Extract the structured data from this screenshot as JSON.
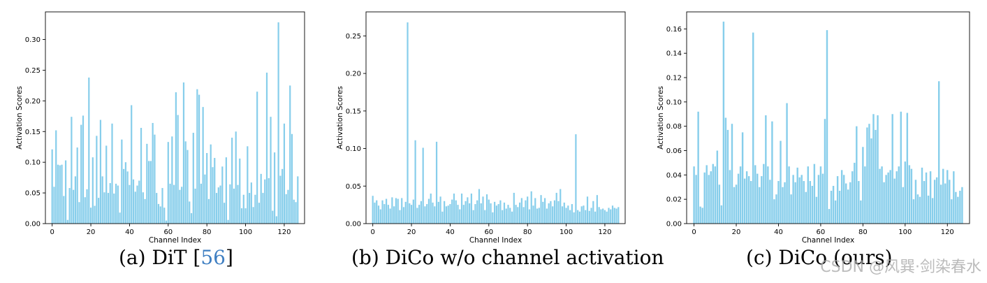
{
  "colors": {
    "bar": "#87ceeb",
    "axis": "#000000",
    "ref": "#3f7fc2"
  },
  "captions": [
    {
      "prefix": "(a) DiT [",
      "ref": "56",
      "suffix": "]"
    },
    {
      "text": "(b) DiCo w/o channel activation"
    },
    {
      "text": "(c) DiCo (ours)"
    }
  ],
  "watermark": "CSDN @风巽·剑染春水",
  "chart_data": [
    {
      "type": "bar",
      "xlabel": "Channel Index",
      "ylabel": "Activation Scores",
      "xlim": [
        -3.5,
        130.5
      ],
      "ylim": [
        0,
        0.345
      ],
      "xticks": [
        0,
        20,
        40,
        60,
        80,
        100,
        120
      ],
      "yticks": [
        "0.00",
        "0.05",
        "0.10",
        "0.15",
        "0.20",
        "0.25",
        "0.30"
      ],
      "x": "channel index 0-127",
      "values": [
        0.121,
        0.06,
        0.152,
        0.096,
        0.095,
        0.096,
        0.045,
        0.103,
        0.006,
        0.058,
        0.174,
        0.055,
        0.077,
        0.124,
        0.035,
        0.161,
        0.176,
        0.043,
        0.056,
        0.238,
        0.026,
        0.108,
        0.029,
        0.143,
        0.042,
        0.169,
        0.077,
        0.051,
        0.127,
        0.05,
        0.066,
        0.163,
        0.049,
        0.065,
        0.062,
        0.018,
        0.137,
        0.089,
        0.1,
        0.085,
        0.063,
        0.193,
        0.072,
        0.052,
        0.062,
        0.07,
        0.156,
        0.051,
        0.04,
        0.13,
        0.102,
        0.102,
        0.164,
        0.145,
        0.05,
        0.032,
        0.028,
        0.058,
        0.026,
        0.005,
        0.133,
        0.065,
        0.142,
        0.063,
        0.214,
        0.177,
        0.055,
        0.06,
        0.23,
        0.134,
        0.12,
        0.036,
        0.017,
        0.148,
        0.057,
        0.219,
        0.21,
        0.065,
        0.19,
        0.08,
        0.115,
        0.04,
        0.129,
        0.092,
        0.107,
        0.05,
        0.059,
        0.062,
        0.093,
        0.034,
        0.108,
        0.006,
        0.064,
        0.14,
        0.057,
        0.15,
        0.063,
        0.106,
        0.025,
        0.047,
        0.025,
        0.126,
        0.05,
        0.067,
        0.027,
        0.047,
        0.215,
        0.034,
        0.081,
        0.05,
        0.072,
        0.246,
        0.074,
        0.174,
        0.021,
        0.116,
        0.012,
        0.328,
        0.078,
        0.089,
        0.163,
        0.048,
        0.055,
        0.225,
        0.146,
        0.039,
        0.035,
        0.077
      ]
    },
    {
      "type": "bar",
      "xlabel": "Channel Index",
      "ylabel": "Activation Scores",
      "xlim": [
        -3.5,
        130.5
      ],
      "ylim": [
        0,
        0.282
      ],
      "xticks": [
        0,
        20,
        40,
        60,
        80,
        100,
        120
      ],
      "yticks": [
        "0.00",
        "0.05",
        "0.10",
        "0.15",
        "0.20",
        "0.25"
      ],
      "x": "channel index 0-127",
      "values": [
        0.037,
        0.028,
        0.031,
        0.024,
        0.019,
        0.031,
        0.026,
        0.033,
        0.025,
        0.02,
        0.035,
        0.023,
        0.034,
        0.033,
        0.018,
        0.034,
        0.022,
        0.029,
        0.268,
        0.027,
        0.025,
        0.032,
        0.111,
        0.021,
        0.025,
        0.03,
        0.101,
        0.023,
        0.026,
        0.033,
        0.04,
        0.028,
        0.023,
        0.109,
        0.029,
        0.036,
        0.016,
        0.03,
        0.023,
        0.024,
        0.026,
        0.032,
        0.04,
        0.031,
        0.025,
        0.019,
        0.04,
        0.025,
        0.03,
        0.035,
        0.027,
        0.04,
        0.018,
        0.026,
        0.031,
        0.046,
        0.027,
        0.036,
        0.018,
        0.039,
        0.032,
        0.027,
        0.015,
        0.029,
        0.024,
        0.026,
        0.031,
        0.018,
        0.028,
        0.02,
        0.025,
        0.021,
        0.016,
        0.041,
        0.025,
        0.022,
        0.028,
        0.034,
        0.022,
        0.031,
        0.036,
        0.019,
        0.043,
        0.024,
        0.034,
        0.02,
        0.021,
        0.038,
        0.029,
        0.034,
        0.02,
        0.027,
        0.03,
        0.023,
        0.031,
        0.041,
        0.03,
        0.046,
        0.023,
        0.028,
        0.021,
        0.024,
        0.018,
        0.026,
        0.015,
        0.119,
        0.018,
        0.016,
        0.023,
        0.024,
        0.018,
        0.036,
        0.017,
        0.021,
        0.03,
        0.016,
        0.038,
        0.022,
        0.019,
        0.02,
        0.018,
        0.016,
        0.021,
        0.019,
        0.024,
        0.021,
        0.02,
        0.022
      ]
    },
    {
      "type": "bar",
      "xlabel": "Channel Index",
      "ylabel": "Activation Scores",
      "xlim": [
        -3.5,
        130.5
      ],
      "ylim": [
        0,
        0.174
      ],
      "xticks": [
        0,
        20,
        40,
        60,
        80,
        100,
        120
      ],
      "yticks": [
        "0.00",
        "0.02",
        "0.04",
        "0.06",
        "0.08",
        "0.10",
        "0.12",
        "0.14",
        "0.16"
      ],
      "x": "channel index 0-127",
      "values": [
        0.047,
        0.04,
        0.092,
        0.014,
        0.013,
        0.042,
        0.048,
        0.04,
        0.043,
        0.049,
        0.047,
        0.06,
        0.032,
        0.015,
        0.166,
        0.087,
        0.077,
        0.044,
        0.082,
        0.03,
        0.032,
        0.041,
        0.047,
        0.075,
        0.037,
        0.043,
        0.039,
        0.035,
        0.157,
        0.048,
        0.041,
        0.03,
        0.039,
        0.049,
        0.089,
        0.047,
        0.036,
        0.084,
        0.02,
        0.024,
        0.035,
        0.068,
        0.03,
        0.034,
        0.099,
        0.047,
        0.024,
        0.04,
        0.034,
        0.046,
        0.038,
        0.04,
        0.035,
        0.026,
        0.047,
        0.035,
        0.031,
        0.049,
        0.022,
        0.04,
        0.047,
        0.041,
        0.086,
        0.159,
        0.012,
        0.027,
        0.031,
        0.019,
        0.039,
        0.027,
        0.044,
        0.04,
        0.033,
        0.028,
        0.034,
        0.043,
        0.05,
        0.08,
        0.035,
        0.019,
        0.063,
        0.047,
        0.079,
        0.082,
        0.07,
        0.09,
        0.077,
        0.089,
        0.045,
        0.047,
        0.034,
        0.04,
        0.042,
        0.044,
        0.09,
        0.037,
        0.043,
        0.047,
        0.092,
        0.03,
        0.051,
        0.091,
        0.048,
        0.045,
        0.02,
        0.036,
        0.024,
        0.022,
        0.046,
        0.035,
        0.042,
        0.023,
        0.043,
        0.021,
        0.036,
        0.038,
        0.117,
        0.032,
        0.045,
        0.033,
        0.044,
        0.036,
        0.02,
        0.043,
        0.026,
        0.022,
        0.027,
        0.03
      ]
    }
  ]
}
